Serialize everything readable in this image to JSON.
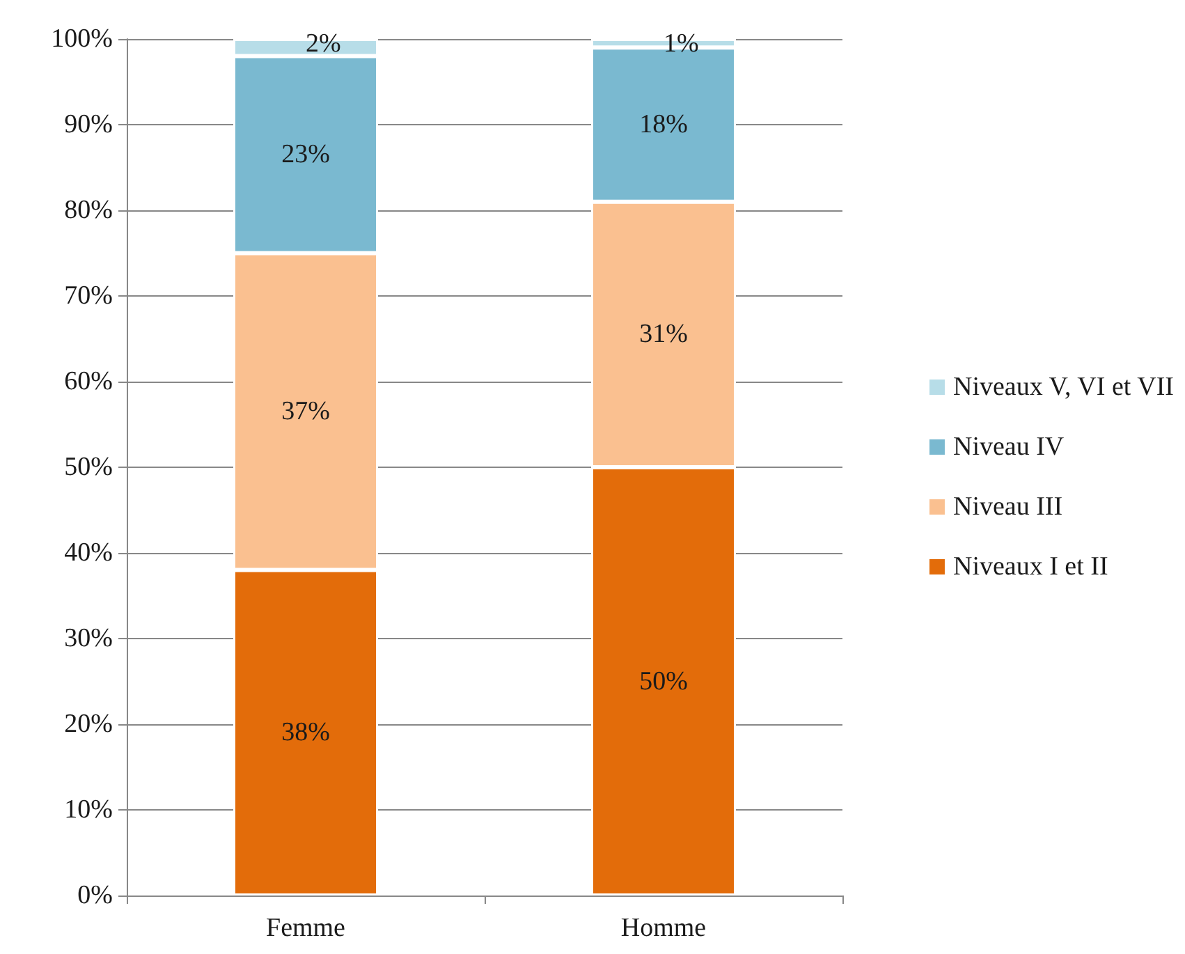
{
  "chart_data": {
    "type": "bar",
    "stacked": true,
    "categories": [
      "Femme",
      "Homme"
    ],
    "series": [
      {
        "name": "Niveaux I et II",
        "color": "#e36c0a",
        "values": [
          38,
          50
        ],
        "value_labels": [
          "38%",
          "50%"
        ]
      },
      {
        "name": "Niveau III",
        "color": "#fac090",
        "values": [
          37,
          31
        ],
        "value_labels": [
          "37%",
          "31%"
        ]
      },
      {
        "name": "Niveau IV",
        "color": "#7ab9d0",
        "values": [
          23,
          18
        ],
        "value_labels": [
          "23%",
          "18%"
        ]
      },
      {
        "name": "Niveaux V, VI et VII",
        "color": "#b7dde8",
        "values": [
          2,
          1
        ],
        "value_labels": [
          "2%",
          "1%"
        ]
      }
    ],
    "ylim": [
      0,
      100
    ],
    "yticks": [
      {
        "value": 0,
        "label": "0%"
      },
      {
        "value": 10,
        "label": "10%"
      },
      {
        "value": 20,
        "label": "20%"
      },
      {
        "value": 30,
        "label": "30%"
      },
      {
        "value": 40,
        "label": "40%"
      },
      {
        "value": 50,
        "label": "50%"
      },
      {
        "value": 60,
        "label": "60%"
      },
      {
        "value": 70,
        "label": "70%"
      },
      {
        "value": 80,
        "label": "80%"
      },
      {
        "value": 90,
        "label": "90%"
      },
      {
        "value": 100,
        "label": "100%"
      }
    ],
    "grid": "y",
    "legend": "right"
  }
}
